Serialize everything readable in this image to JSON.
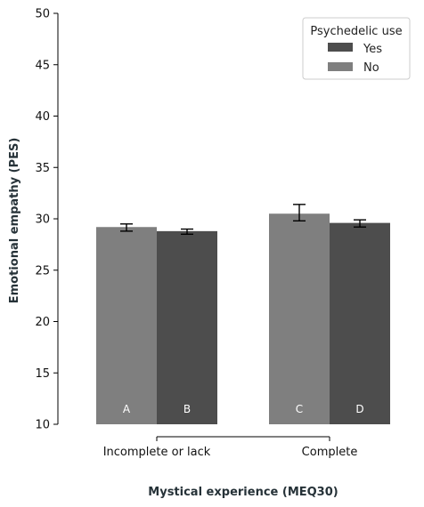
{
  "chart_data": {
    "type": "bar",
    "xlabel": "Mystical experience (MEQ30)",
    "ylabel": "Emotional empathy (PES)",
    "ylim": [
      10,
      50
    ],
    "yticks": [
      10,
      15,
      20,
      25,
      30,
      35,
      40,
      45,
      50
    ],
    "grid": false,
    "categories": [
      "Incomplete or lack",
      "Complete"
    ],
    "legend": {
      "title": "Psychedelic use",
      "position": "top-right",
      "entries": [
        {
          "label": "Yes",
          "color": "#4d4d4d"
        },
        {
          "label": "No",
          "color": "#7f7f7f"
        }
      ]
    },
    "bars": [
      {
        "category": "Incomplete or lack",
        "series": "No",
        "label": "A",
        "value": 29.2,
        "err_low": 28.8,
        "err_high": 29.5,
        "color": "#7f7f7f"
      },
      {
        "category": "Incomplete or lack",
        "series": "Yes",
        "label": "B",
        "value": 28.8,
        "err_low": 28.5,
        "err_high": 29.0,
        "color": "#4d4d4d"
      },
      {
        "category": "Complete",
        "series": "No",
        "label": "C",
        "value": 30.5,
        "err_low": 29.8,
        "err_high": 31.4,
        "color": "#7f7f7f"
      },
      {
        "category": "Complete",
        "series": "Yes",
        "label": "D",
        "value": 29.6,
        "err_low": 29.2,
        "err_high": 29.9,
        "color": "#4d4d4d"
      }
    ]
  }
}
